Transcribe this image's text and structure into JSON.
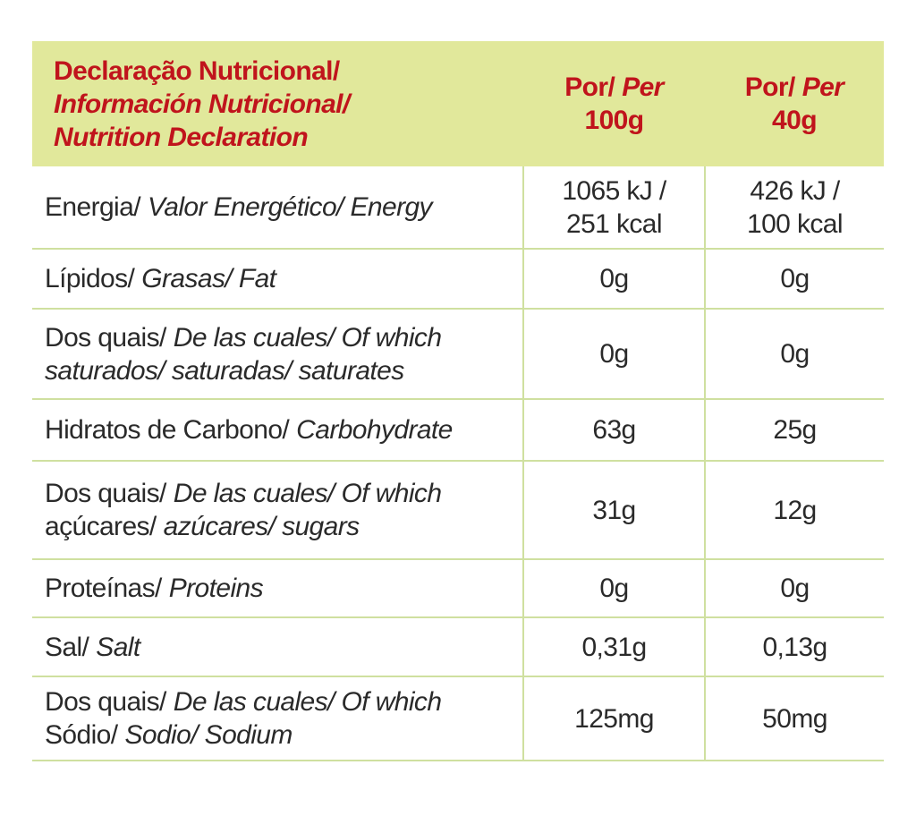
{
  "table": {
    "header": {
      "title": [
        [
          {
            "text": "Declaração Nutricional/",
            "italic": false
          }
        ],
        [
          {
            "text": "Información Nutricional/",
            "italic": true
          }
        ],
        [
          {
            "text": "Nutrition Declaration",
            "italic": true
          }
        ]
      ],
      "columns": [
        [
          [
            {
              "text": "Por/",
              "italic": false
            },
            {
              "text": "Per",
              "italic": true
            }
          ],
          [
            {
              "text": "100g",
              "italic": false
            }
          ]
        ],
        [
          [
            {
              "text": "Por/",
              "italic": false
            },
            {
              "text": "Per",
              "italic": true
            }
          ],
          [
            {
              "text": "40g",
              "italic": false
            }
          ]
        ]
      ]
    },
    "rows": [
      {
        "label": [
          [
            {
              "text": "Energia/",
              "italic": false
            },
            {
              "text": "Valor Energético/ Energy",
              "italic": true
            }
          ]
        ],
        "values": [
          [
            "1065 kJ /",
            "251 kcal"
          ],
          [
            "426 kJ /",
            "100 kcal"
          ]
        ]
      },
      {
        "label": [
          [
            {
              "text": "Lípidos/",
              "italic": false
            },
            {
              "text": "Grasas/ Fat",
              "italic": true
            }
          ]
        ],
        "values": [
          [
            "0g"
          ],
          [
            "0g"
          ]
        ]
      },
      {
        "label": [
          [
            {
              "text": "Dos quais/",
              "italic": false
            },
            {
              "text": "De las cuales/ Of which",
              "italic": true
            }
          ],
          [
            {
              "text": "saturados/ saturadas/ saturates",
              "italic": true
            }
          ]
        ],
        "values": [
          [
            "0g"
          ],
          [
            "0g"
          ]
        ]
      },
      {
        "label": [
          [
            {
              "text": "Hidratos de Carbono/",
              "italic": false
            },
            {
              "text": "Carbohydrate",
              "italic": true
            }
          ]
        ],
        "values": [
          [
            "63g"
          ],
          [
            "25g"
          ]
        ]
      },
      {
        "label": [
          [
            {
              "text": "Dos quais/",
              "italic": false
            },
            {
              "text": "De las cuales/ Of which",
              "italic": true
            }
          ],
          [
            {
              "text": "açúcares/",
              "italic": false
            },
            {
              "text": "azúcares/ sugars",
              "italic": true
            }
          ]
        ],
        "values": [
          [
            "31g"
          ],
          [
            "12g"
          ]
        ]
      },
      {
        "label": [
          [
            {
              "text": "Proteínas/",
              "italic": false
            },
            {
              "text": "Proteins",
              "italic": true
            }
          ]
        ],
        "values": [
          [
            "0g"
          ],
          [
            "0g"
          ]
        ]
      },
      {
        "label": [
          [
            {
              "text": "Sal/",
              "italic": false
            },
            {
              "text": "Salt",
              "italic": true
            }
          ]
        ],
        "values": [
          [
            "0,31g"
          ],
          [
            "0,13g"
          ]
        ]
      },
      {
        "label": [
          [
            {
              "text": "Dos quais/",
              "italic": false
            },
            {
              "text": "De las cuales/ Of which",
              "italic": true
            }
          ],
          [
            {
              "text": "Sódio/",
              "italic": false
            },
            {
              "text": "Sodio/ Sodium",
              "italic": true
            }
          ]
        ],
        "values": [
          [
            "125mg"
          ],
          [
            "50mg"
          ]
        ]
      }
    ]
  }
}
